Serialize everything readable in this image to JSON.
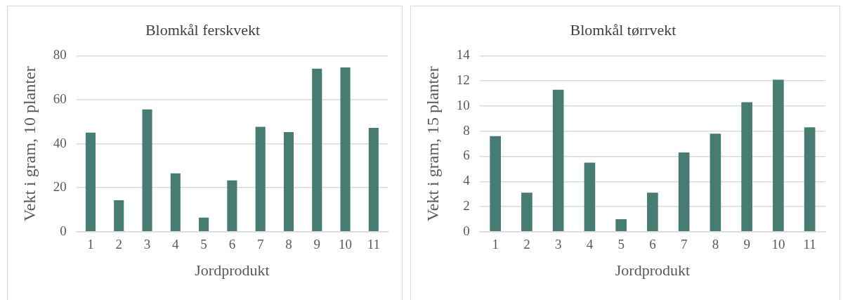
{
  "chart_data": [
    {
      "type": "bar",
      "title": "Blomkål ferskvekt",
      "xlabel": "Jordprodukt",
      "ylabel": "Vekt i gram, 10 planter",
      "categories": [
        "1",
        "2",
        "3",
        "4",
        "5",
        "6",
        "7",
        "8",
        "9",
        "10",
        "11"
      ],
      "values": [
        45.1,
        14.3,
        55.6,
        26.5,
        6.4,
        23.3,
        47.7,
        45.3,
        74.1,
        74.7,
        47.2
      ],
      "color": "#467c72",
      "ylim": [
        0,
        80
      ],
      "yticks": [
        0,
        20,
        40,
        60,
        80
      ],
      "grid": "y",
      "legend": false
    },
    {
      "type": "bar",
      "title": "Blomkål tørrvekt",
      "xlabel": "Jordprodukt",
      "ylabel": "Vekt i gram, 15 planter",
      "categories": [
        "1",
        "2",
        "3",
        "4",
        "5",
        "6",
        "7",
        "8",
        "9",
        "10",
        "11"
      ],
      "values": [
        7.6,
        3.1,
        11.3,
        5.5,
        1.0,
        3.1,
        6.3,
        7.8,
        10.3,
        12.1,
        8.3
      ],
      "color": "#467c72",
      "ylim": [
        0,
        14
      ],
      "yticks": [
        0,
        2,
        4,
        6,
        8,
        10,
        12,
        14
      ],
      "grid": "y",
      "legend": false
    }
  ]
}
